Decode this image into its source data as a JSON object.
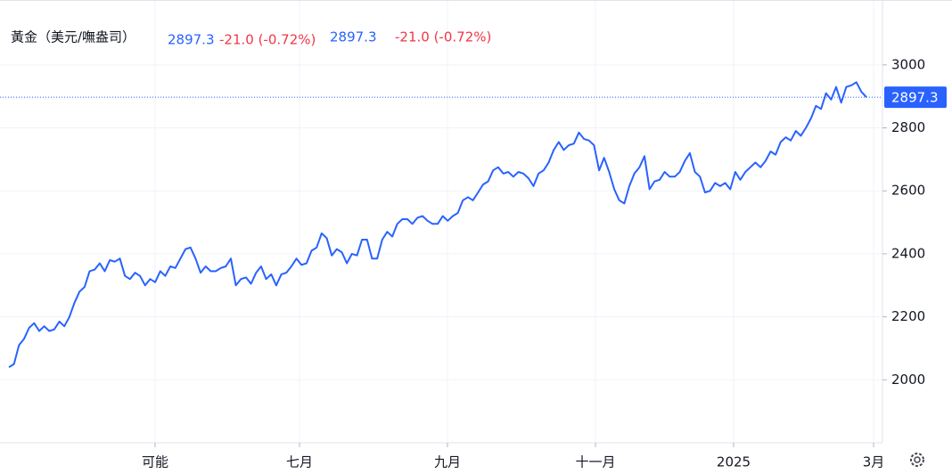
{
  "chart_data": {
    "type": "line",
    "title": "黃金（美元/嘸盎司）",
    "change_text": "-21.0 (-0.72%)",
    "xtick_labels": [
      "可能",
      "七月",
      "九月",
      "十一月",
      "2025",
      "3月"
    ],
    "series": [
      {
        "name": "黃金",
        "color": "#2962ff",
        "values": [
          2040,
          2050,
          2110,
          2130,
          2165,
          2180,
          2155,
          2170,
          2155,
          2160,
          2185,
          2170,
          2200,
          2245,
          2280,
          2295,
          2345,
          2350,
          2370,
          2345,
          2380,
          2375,
          2385,
          2330,
          2320,
          2340,
          2330,
          2300,
          2320,
          2310,
          2345,
          2330,
          2360,
          2355,
          2385,
          2415,
          2420,
          2385,
          2340,
          2360,
          2345,
          2345,
          2355,
          2360,
          2385,
          2300,
          2320,
          2325,
          2305,
          2340,
          2360,
          2320,
          2335,
          2300,
          2335,
          2340,
          2360,
          2385,
          2365,
          2370,
          2410,
          2420,
          2465,
          2450,
          2395,
          2415,
          2405,
          2370,
          2400,
          2395,
          2445,
          2445,
          2385,
          2385,
          2445,
          2470,
          2455,
          2495,
          2510,
          2510,
          2495,
          2515,
          2520,
          2505,
          2495,
          2495,
          2520,
          2505,
          2520,
          2530,
          2570,
          2580,
          2570,
          2595,
          2620,
          2630,
          2665,
          2675,
          2655,
          2660,
          2645,
          2660,
          2655,
          2640,
          2615,
          2655,
          2665,
          2690,
          2730,
          2755,
          2730,
          2745,
          2750,
          2785,
          2765,
          2760,
          2745,
          2665,
          2705,
          2660,
          2605,
          2570,
          2560,
          2615,
          2655,
          2675,
          2710,
          2605,
          2630,
          2635,
          2660,
          2645,
          2645,
          2660,
          2695,
          2720,
          2660,
          2645,
          2595,
          2600,
          2625,
          2615,
          2625,
          2605,
          2660,
          2635,
          2660,
          2675,
          2690,
          2675,
          2695,
          2725,
          2715,
          2755,
          2770,
          2760,
          2790,
          2775,
          2800,
          2830,
          2870,
          2860,
          2910,
          2890,
          2930,
          2880,
          2930,
          2935,
          2945,
          2915,
          2897.3
        ]
      }
    ],
    "ylim": [
      1800,
      3206
    ],
    "yticks": [
      2000,
      2200,
      2400,
      2600,
      2800,
      3000
    ],
    "grid": true
  }
}
